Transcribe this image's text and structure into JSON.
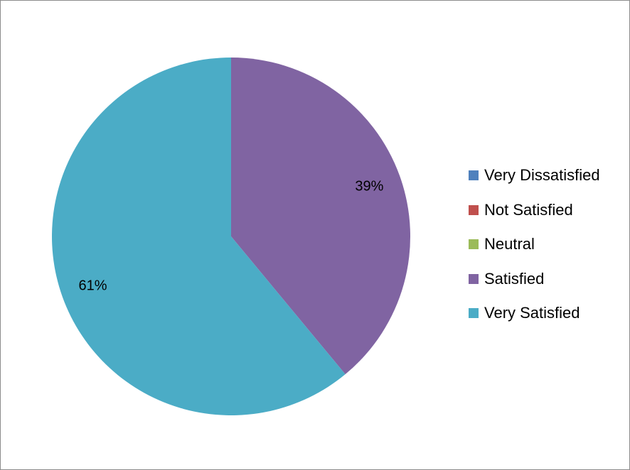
{
  "chart_data": {
    "type": "pie",
    "title": "",
    "categories": [
      "Very Dissatisfied",
      "Not Satisfied",
      "Neutral",
      "Satisfied",
      "Very Satisfied"
    ],
    "values": [
      0,
      0,
      0,
      39,
      61
    ],
    "data_labels": [
      "",
      "",
      "",
      "39%",
      "61%"
    ],
    "colors": [
      "#4f81bd",
      "#c0504d",
      "#9bbb59",
      "#8064a2",
      "#4bacc6"
    ],
    "start_angle_deg": 0,
    "direction": "clockwise",
    "legend_position": "right"
  }
}
